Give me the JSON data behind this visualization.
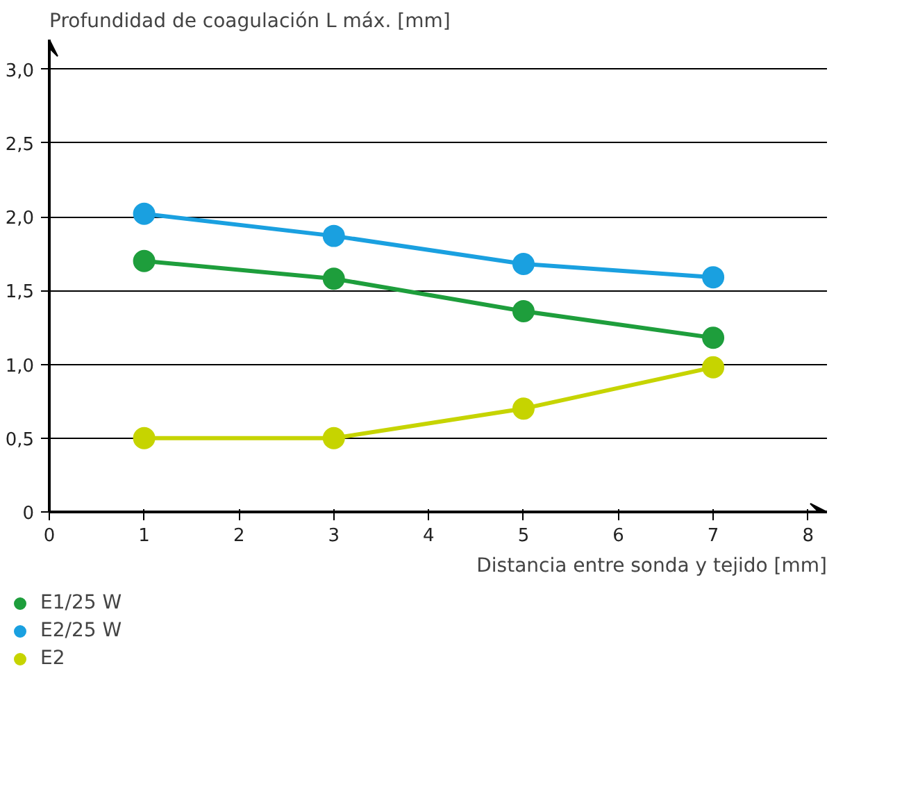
{
  "chart_data": {
    "type": "line",
    "xlabel": "Distancia entre sonda y tejido [mm]",
    "ylabel": "Profundidad de coagulación L máx. [mm]",
    "x": [
      1,
      3,
      5,
      7
    ],
    "series": [
      {
        "name": "E1/25 W",
        "color": "#1e9e3c",
        "values": [
          1.7,
          1.58,
          1.36,
          1.18
        ]
      },
      {
        "name": "E2/25 W",
        "color": "#1aa0e0",
        "values": [
          2.02,
          1.87,
          1.68,
          1.59
        ]
      },
      {
        "name": "E2",
        "color": "#c6d400",
        "values": [
          0.5,
          0.5,
          0.7,
          0.98
        ]
      }
    ],
    "xlim": [
      0,
      8.2
    ],
    "ylim": [
      0,
      3.2
    ],
    "xticks": [
      0,
      1,
      2,
      3,
      4,
      5,
      6,
      7,
      8
    ],
    "yticks": [
      0,
      {
        "value": 0.5,
        "label": "0,5"
      },
      {
        "value": 1,
        "label": "1,0"
      },
      {
        "value": 1.5,
        "label": "1,5"
      },
      {
        "value": 2,
        "label": "2,0"
      },
      {
        "value": 2.5,
        "label": "2,5"
      },
      {
        "value": 3,
        "label": "3,0"
      }
    ],
    "grid": "y",
    "legend": "bottom",
    "marker": "circle",
    "line_style": "solid"
  }
}
